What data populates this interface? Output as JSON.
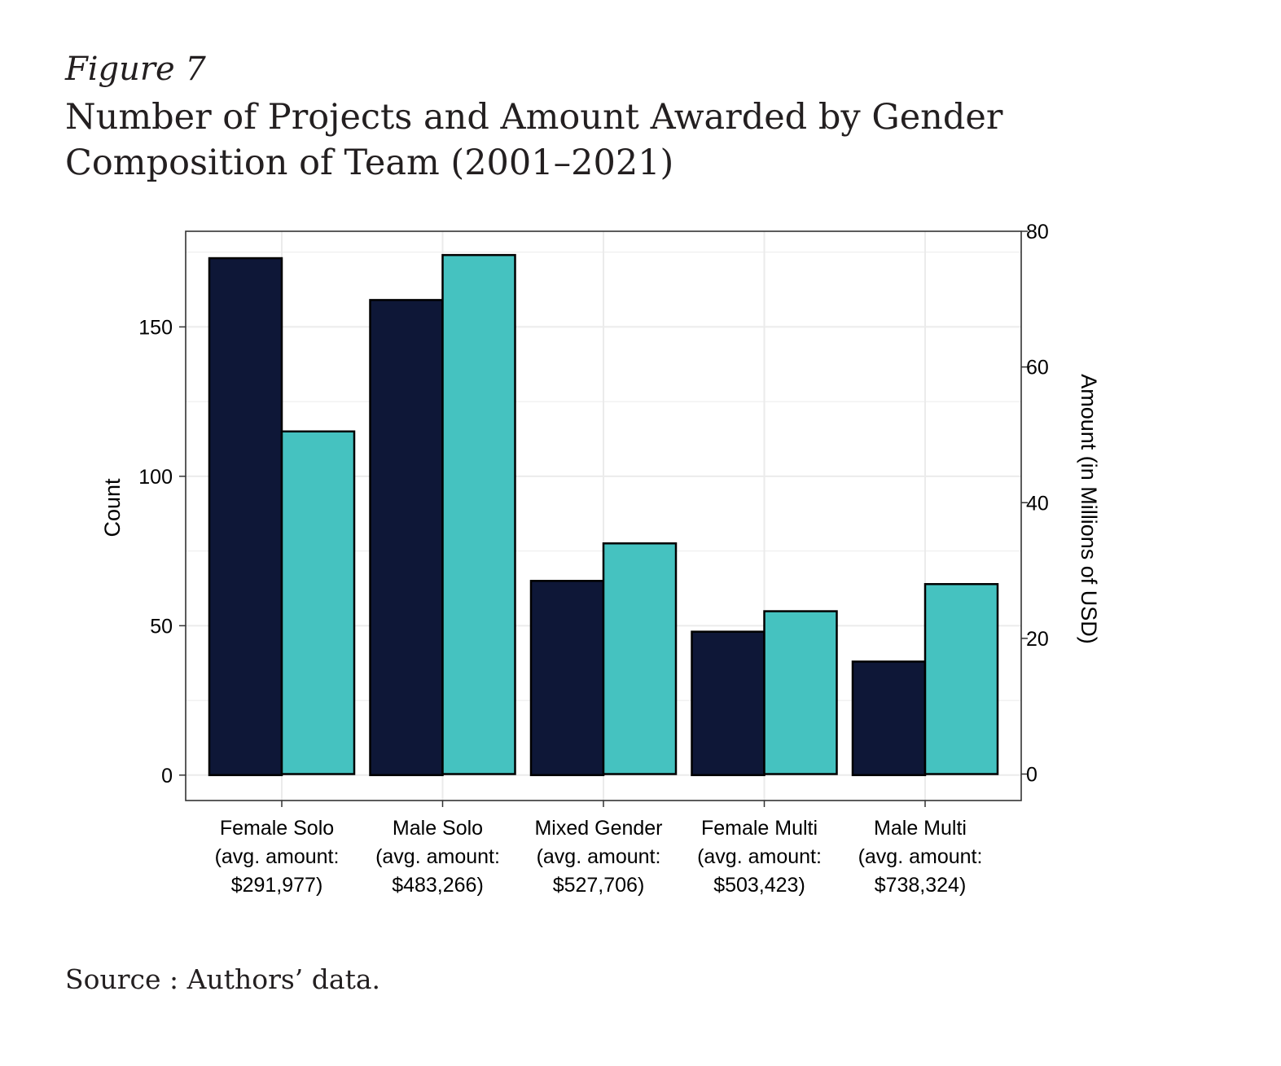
{
  "figure": {
    "label": "Figure 7",
    "title": "Number of Projects and Amount Awarded by Gender Composition of Team (2001–2021)",
    "source": "Source : Authors’ data."
  },
  "colors": {
    "count_bar": "#0e1737",
    "amount_bar": "#45c2c0",
    "grid": "#ebebeb",
    "frame": "#333333"
  },
  "chart_data": {
    "type": "bar",
    "categories": [
      [
        "Female Solo",
        "(avg. amount:",
        "$291,977)"
      ],
      [
        "Male Solo",
        "(avg. amount:",
        "$483,266)"
      ],
      [
        "Mixed Gender",
        "(avg. amount:",
        "$527,706)"
      ],
      [
        "Female Multi",
        "(avg. amount:",
        "$503,423)"
      ],
      [
        "Male Multi",
        "(avg. amount:",
        "$738,324)"
      ]
    ],
    "series": [
      {
        "name": "Count",
        "axis": "left",
        "values": [
          173,
          159,
          65,
          48,
          38
        ]
      },
      {
        "name": "Amount (in Millions of USD)",
        "axis": "right",
        "values": [
          50.5,
          76.5,
          34.0,
          24.0,
          28.0
        ]
      }
    ],
    "ylabel": "Count",
    "y2label": "Amount (in Millions of USD)",
    "ylim": [
      -8.5,
      182
    ],
    "y_ticks": [
      0,
      50,
      100,
      150
    ],
    "y2lim": [
      -3.9,
      80
    ],
    "y2_ticks": [
      0,
      20,
      40,
      60,
      80
    ],
    "grid": true,
    "legend": "none"
  }
}
